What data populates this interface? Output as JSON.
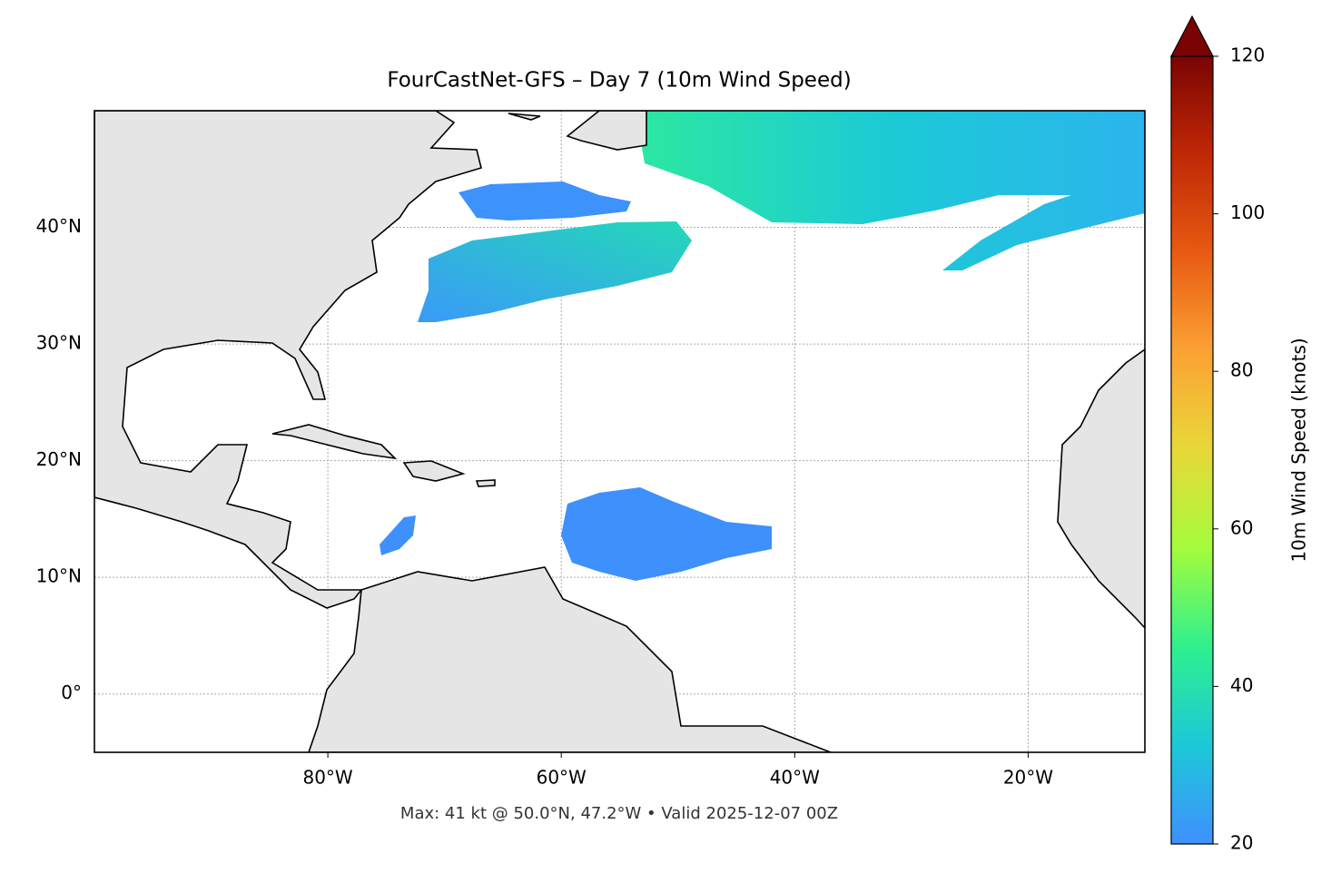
{
  "chart_data": {
    "type": "map",
    "title": "FourCastNet-GFS – Day 7 (10m Wind Speed)",
    "footnote": "Max: 41 kt @ 50.0°N, 47.2°W • Valid 2025-12-07 00Z",
    "xlim": [
      -100,
      -10
    ],
    "ylim": [
      -5,
      50
    ],
    "xticks": [
      {
        "value": -80,
        "label": "80°W"
      },
      {
        "value": -60,
        "label": "60°W"
      },
      {
        "value": -40,
        "label": "40°W"
      },
      {
        "value": -20,
        "label": "20°W"
      }
    ],
    "yticks": [
      {
        "value": 0,
        "label": "0°"
      },
      {
        "value": 10,
        "label": "10°N"
      },
      {
        "value": 20,
        "label": "20°N"
      },
      {
        "value": 30,
        "label": "30°N"
      },
      {
        "value": 40,
        "label": "40°N"
      }
    ],
    "grid": true,
    "colorbar": {
      "label": "10m Wind Speed (knots)",
      "lim": [
        20,
        120
      ],
      "ticks": [
        20,
        40,
        60,
        80,
        100,
        120
      ],
      "colors": [
        "#4090fe",
        "#1cc8d8",
        "#2ef08e",
        "#a4fc3c",
        "#e8d838",
        "#fca234",
        "#e85a12",
        "#c02806",
        "#7a0403"
      ]
    }
  }
}
